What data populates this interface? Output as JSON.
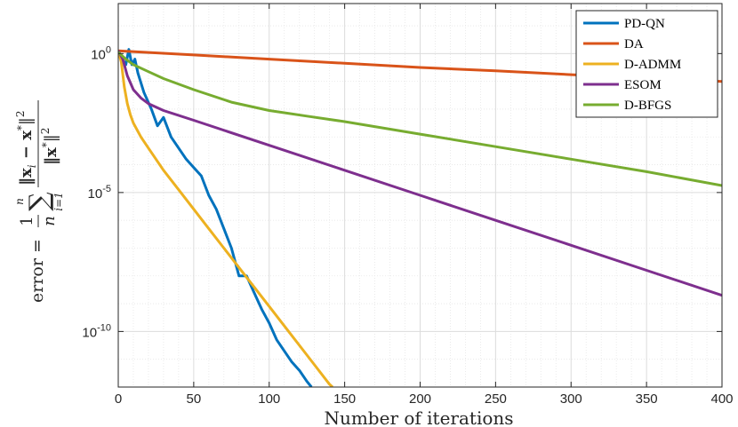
{
  "chart_data": {
    "type": "line",
    "xlabel": "Number of iterations",
    "ylabel_parts": {
      "lhs": "error =",
      "frac_one": "1",
      "frac_n": "n",
      "sum": "∑",
      "sum_upper": "n",
      "sum_lower": "i=1",
      "numerator": "‖x",
      "num_sub": "i",
      "num_mid": " − x",
      "num_star": "*",
      "num_close": "‖",
      "num_pow": "2",
      "denominator": "‖x",
      "den_star": "*",
      "den_close": "‖",
      "den_pow": "2"
    },
    "xlim": [
      0,
      400
    ],
    "yscale": "log",
    "ylim_log10": [
      -12,
      1.8
    ],
    "grid": true,
    "legend_position": "top-right",
    "x_ticks": [
      0,
      50,
      100,
      150,
      200,
      250,
      300,
      350,
      400
    ],
    "y_ticks": [
      {
        "exp": 0,
        "base": "10",
        "power": "0"
      },
      {
        "exp": -5,
        "base": "10",
        "power": "-5"
      },
      {
        "exp": -10,
        "base": "10",
        "power": "-10"
      }
    ],
    "series": [
      {
        "name": "PD-QN",
        "color": "#0072BD",
        "points_log10": [
          [
            0,
            0.05
          ],
          [
            5,
            -0.4
          ],
          [
            7,
            0.15
          ],
          [
            9,
            -0.4
          ],
          [
            11,
            -0.2
          ],
          [
            13,
            -0.7
          ],
          [
            17,
            -1.4
          ],
          [
            22,
            -2.0
          ],
          [
            26,
            -2.6
          ],
          [
            30,
            -2.3
          ],
          [
            35,
            -3.0
          ],
          [
            40,
            -3.4
          ],
          [
            45,
            -3.8
          ],
          [
            50,
            -4.1
          ],
          [
            55,
            -4.4
          ],
          [
            60,
            -5.1
          ],
          [
            65,
            -5.6
          ],
          [
            70,
            -6.3
          ],
          [
            75,
            -7.0
          ],
          [
            80,
            -8.0
          ],
          [
            85,
            -8.0
          ],
          [
            90,
            -8.6
          ],
          [
            95,
            -9.2
          ],
          [
            100,
            -9.7
          ],
          [
            105,
            -10.3
          ],
          [
            110,
            -10.7
          ],
          [
            115,
            -11.1
          ],
          [
            120,
            -11.4
          ],
          [
            125,
            -11.8
          ],
          [
            128,
            -12.0
          ]
        ]
      },
      {
        "name": "DA",
        "color": "#D95319",
        "points_log10": [
          [
            0,
            0.1
          ],
          [
            50,
            -0.05
          ],
          [
            100,
            -0.2
          ],
          [
            150,
            -0.35
          ],
          [
            200,
            -0.5
          ],
          [
            250,
            -0.62
          ],
          [
            300,
            -0.76
          ],
          [
            350,
            -0.88
          ],
          [
            400,
            -1.0
          ]
        ]
      },
      {
        "name": "D-ADMM",
        "color": "#EDB120",
        "points_log10": [
          [
            0,
            0.1
          ],
          [
            2,
            -0.3
          ],
          [
            4,
            -1.2
          ],
          [
            6,
            -1.8
          ],
          [
            8,
            -2.2
          ],
          [
            10,
            -2.5
          ],
          [
            15,
            -3.0
          ],
          [
            20,
            -3.4
          ],
          [
            30,
            -4.2
          ],
          [
            40,
            -4.9
          ],
          [
            50,
            -5.6
          ],
          [
            60,
            -6.3
          ],
          [
            70,
            -7.0
          ],
          [
            80,
            -7.7
          ],
          [
            90,
            -8.4
          ],
          [
            100,
            -9.1
          ],
          [
            110,
            -9.8
          ],
          [
            120,
            -10.5
          ],
          [
            130,
            -11.2
          ],
          [
            140,
            -11.9
          ],
          [
            142,
            -12.0
          ]
        ]
      },
      {
        "name": "ESOM",
        "color": "#7E2F8E",
        "points_log10": [
          [
            0,
            0.1
          ],
          [
            3,
            -0.2
          ],
          [
            6,
            -0.8
          ],
          [
            10,
            -1.3
          ],
          [
            15,
            -1.6
          ],
          [
            20,
            -1.8
          ],
          [
            30,
            -2.05
          ],
          [
            50,
            -2.4
          ],
          [
            100,
            -3.3
          ],
          [
            150,
            -4.2
          ],
          [
            200,
            -5.1
          ],
          [
            250,
            -6.0
          ],
          [
            300,
            -6.9
          ],
          [
            350,
            -7.8
          ],
          [
            400,
            -8.7
          ]
        ]
      },
      {
        "name": "D-BFGS",
        "color": "#77AC30",
        "points_log10": [
          [
            0,
            0.05
          ],
          [
            5,
            -0.2
          ],
          [
            10,
            -0.4
          ],
          [
            20,
            -0.65
          ],
          [
            30,
            -0.9
          ],
          [
            50,
            -1.3
          ],
          [
            75,
            -1.75
          ],
          [
            100,
            -2.05
          ],
          [
            125,
            -2.25
          ],
          [
            150,
            -2.45
          ],
          [
            200,
            -2.9
          ],
          [
            250,
            -3.35
          ],
          [
            300,
            -3.8
          ],
          [
            350,
            -4.25
          ],
          [
            400,
            -4.75
          ]
        ]
      }
    ]
  }
}
